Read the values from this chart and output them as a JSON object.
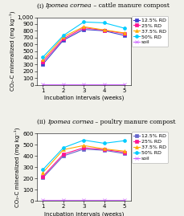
{
  "weeks": [
    1,
    2,
    3,
    4,
    5
  ],
  "chart1": {
    "title1": "(i) ",
    "title2": "Ipomea cornea",
    "title3": " – cattle manure compost",
    "ylim": [
      0,
      1000
    ],
    "yticks": [
      0,
      100,
      200,
      300,
      400,
      500,
      600,
      700,
      800,
      900,
      1000
    ],
    "ytick_labels": [
      "0",
      "100",
      "200",
      "300",
      "400",
      "500",
      "600",
      "700",
      "800",
      "900",
      "1,000"
    ],
    "ylabel": "CO₂-C mineralized (mg kg⁻¹)",
    "series": {
      "12.5% RD": {
        "values": [
          305,
          660,
          820,
          800,
          730
        ],
        "color": "#4040cc",
        "marker": "s"
      },
      "25% RD": {
        "values": [
          340,
          680,
          845,
          808,
          758
        ],
        "color": "#ff1493",
        "marker": "s"
      },
      "37.5% RD": {
        "values": [
          370,
          710,
          860,
          812,
          768
        ],
        "color": "#ffaa00",
        "marker": "^"
      },
      "50% RD": {
        "values": [
          410,
          730,
          930,
          918,
          838
        ],
        "color": "#00ccff",
        "marker": "o"
      },
      "soil": {
        "values": [
          8,
          8,
          8,
          8,
          8
        ],
        "color": "#cc66ff",
        "marker": "x"
      }
    }
  },
  "chart2": {
    "title1": "(ii) ",
    "title2": "Ipomea cornea",
    "title3": " – poultry manure compost",
    "ylim": [
      0,
      600
    ],
    "yticks": [
      0,
      100,
      200,
      300,
      400,
      500,
      600
    ],
    "ytick_labels": [
      "0",
      "100",
      "200",
      "300",
      "400",
      "500",
      "600"
    ],
    "ylabel": "CO₂-C mineralized (mg kg⁻¹)",
    "series": {
      "12.5% RD": {
        "values": [
          205,
          400,
          460,
          450,
          420
        ],
        "color": "#6666cc",
        "marker": "s"
      },
      "25% RD": {
        "values": [
          218,
          415,
          472,
          456,
          432
        ],
        "color": "#ff1493",
        "marker": "s"
      },
      "37.5% RD": {
        "values": [
          252,
          455,
          492,
          462,
          442
        ],
        "color": "#ffaa00",
        "marker": "^"
      },
      "50% RD": {
        "values": [
          278,
          472,
          540,
          512,
          535
        ],
        "color": "#00ccff",
        "marker": "o"
      },
      "soil": {
        "values": [
          8,
          8,
          8,
          8,
          8
        ],
        "color": "#cc66ff",
        "marker": "x"
      }
    }
  },
  "xlabel": "Incubation intervals (weeks)",
  "series_order": [
    "12.5% RD",
    "25% RD",
    "37.5% RD",
    "50% RD",
    "soil"
  ],
  "bg_color": "#f0f0ea",
  "plot_bg": "#ffffff",
  "fontsize": 5.0,
  "title_fontsize": 5.5,
  "legend_fontsize": 4.5,
  "linewidth": 0.8,
  "markersize": 2.8
}
